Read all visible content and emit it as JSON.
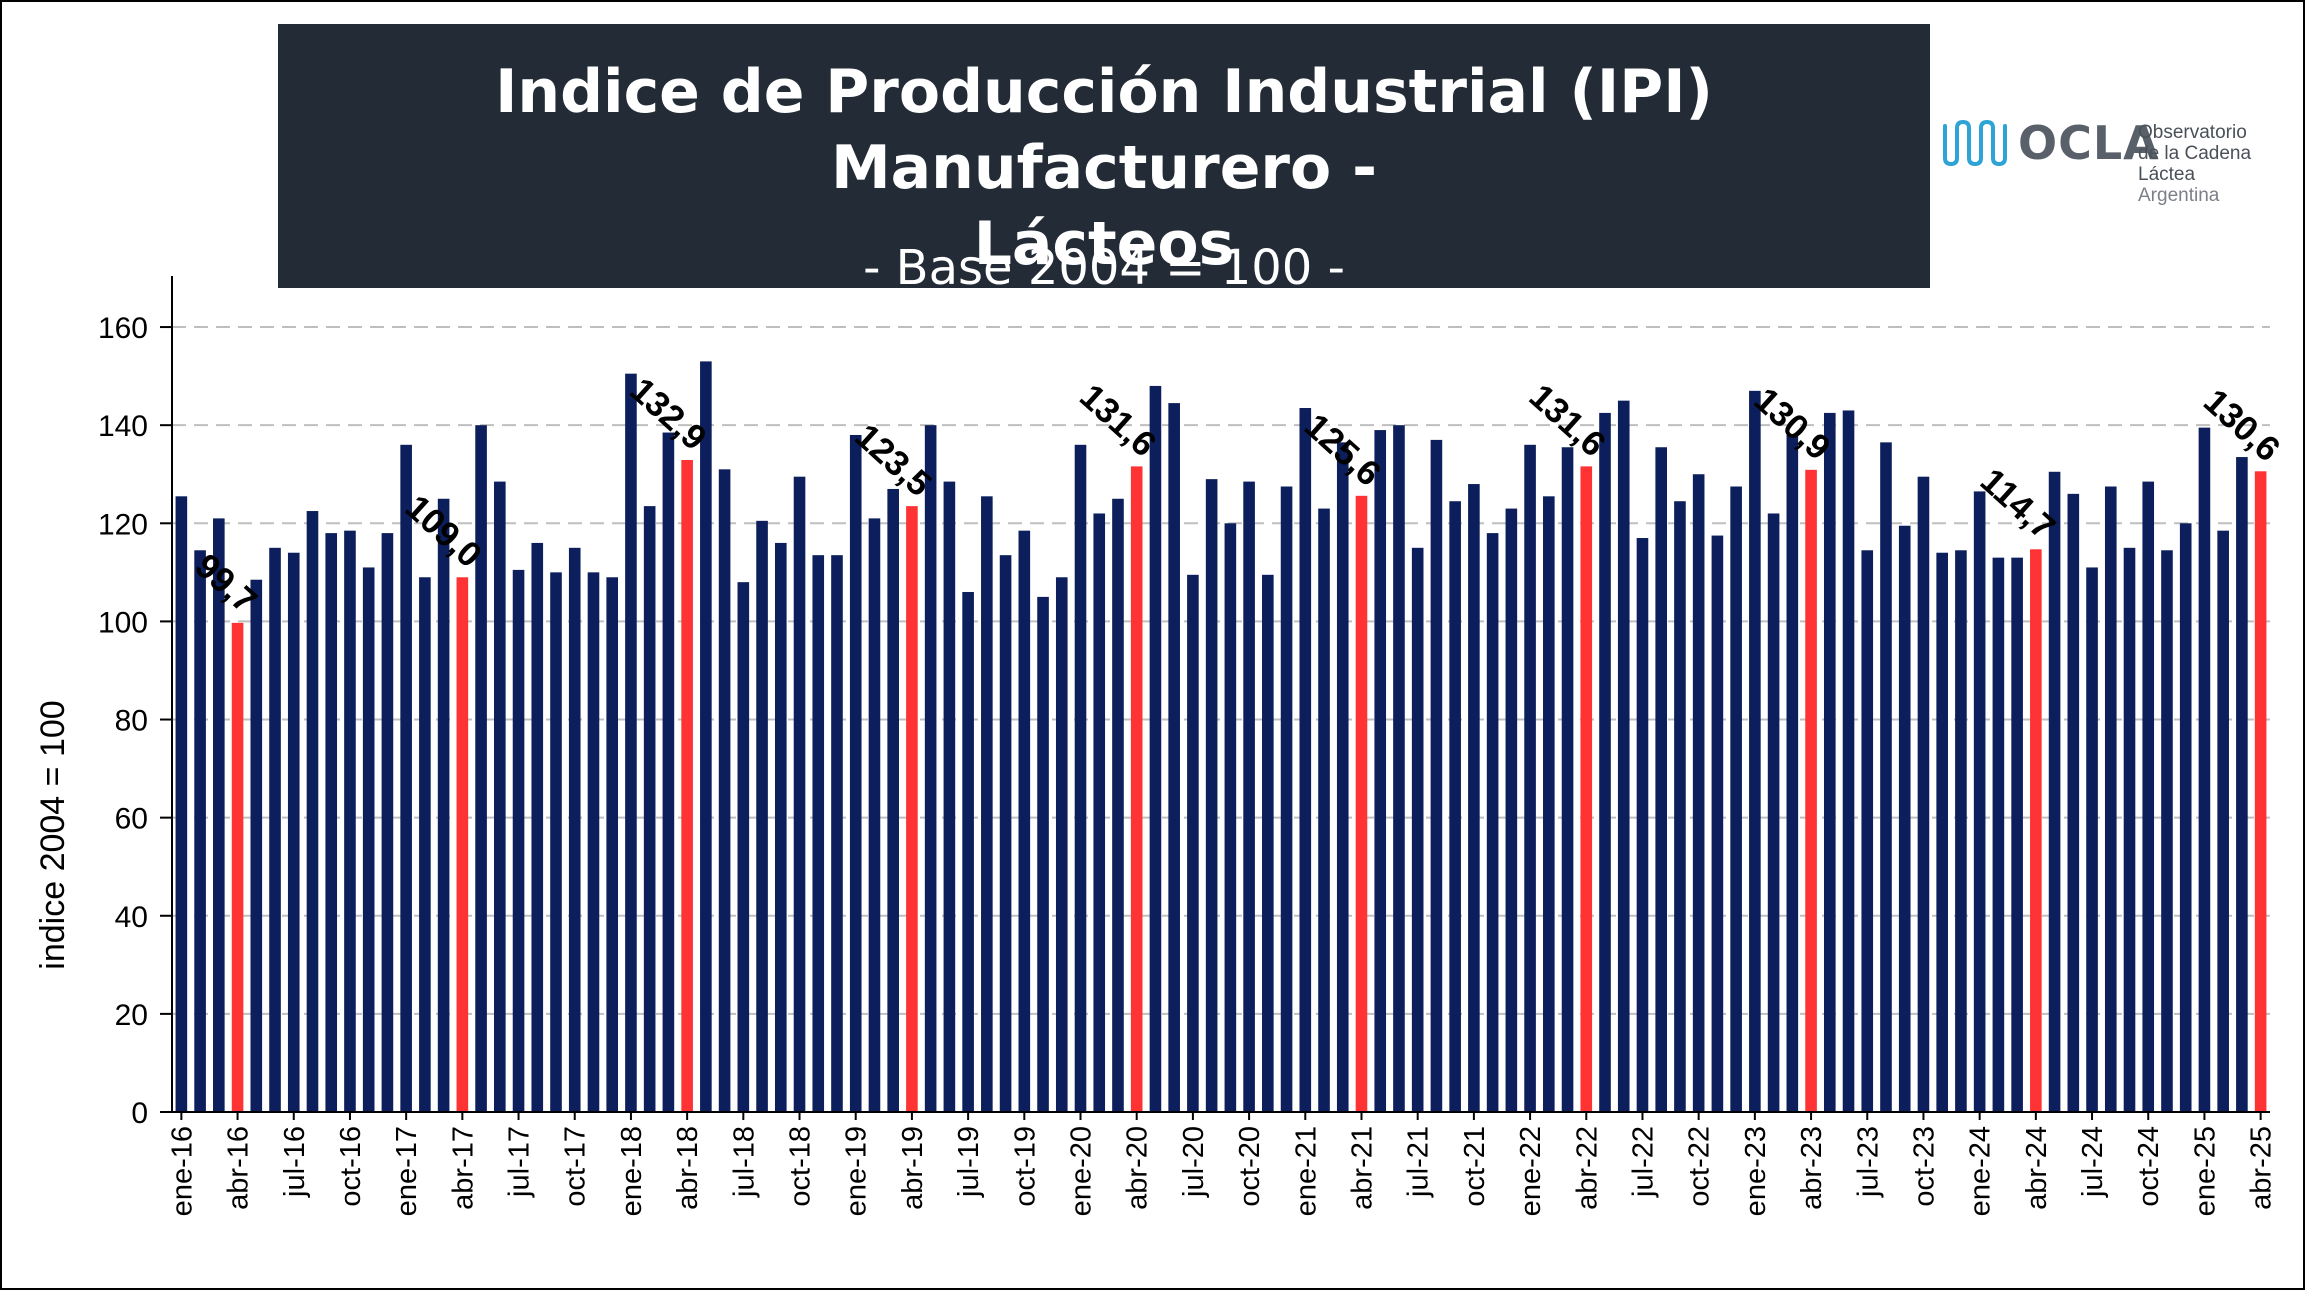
{
  "title": "Indice de Producción Industrial (IPI) Manufacturero - Lácteos",
  "title_lines": [
    "Indice de Producción Industrial (IPI) Manufacturero -",
    "Lácteos"
  ],
  "subtitle": "- Base 2004 = 100 -",
  "logo": {
    "name": "OCLA",
    "line1": "Observatorio",
    "line2": "de la Cadena Láctea",
    "line3": "Argentina",
    "icon": "wave-mark-icon"
  },
  "colors": {
    "title_background": "#222b36",
    "bar_default": "#0c1f5c",
    "bar_highlight": "#ff3333",
    "grid": "#bfbfbf",
    "logo_accent": "#2ea3d6"
  },
  "chart_data": {
    "type": "bar",
    "ylabel": "indice 2004 = 100",
    "xlabel": "",
    "ylim": [
      0,
      170
    ],
    "yticks": [
      0,
      20,
      40,
      60,
      80,
      100,
      120,
      140,
      160
    ],
    "grid": "horizontal dashed",
    "legend": "none",
    "categories": [
      "ene-16",
      "feb-16",
      "mar-16",
      "abr-16",
      "may-16",
      "jun-16",
      "jul-16",
      "ago-16",
      "sep-16",
      "oct-16",
      "nov-16",
      "dic-16",
      "ene-17",
      "feb-17",
      "mar-17",
      "abr-17",
      "may-17",
      "jun-17",
      "jul-17",
      "ago-17",
      "sep-17",
      "oct-17",
      "nov-17",
      "dic-17",
      "ene-18",
      "feb-18",
      "mar-18",
      "abr-18",
      "may-18",
      "jun-18",
      "jul-18",
      "ago-18",
      "sep-18",
      "oct-18",
      "nov-18",
      "dic-18",
      "ene-19",
      "feb-19",
      "mar-19",
      "abr-19",
      "may-19",
      "jun-19",
      "jul-19",
      "ago-19",
      "sep-19",
      "oct-19",
      "nov-19",
      "dic-19",
      "ene-20",
      "feb-20",
      "mar-20",
      "abr-20",
      "may-20",
      "jun-20",
      "jul-20",
      "ago-20",
      "sep-20",
      "oct-20",
      "nov-20",
      "dic-20",
      "ene-21",
      "feb-21",
      "mar-21",
      "abr-21",
      "may-21",
      "jun-21",
      "jul-21",
      "ago-21",
      "sep-21",
      "oct-21",
      "nov-21",
      "dic-21",
      "ene-22",
      "feb-22",
      "mar-22",
      "abr-22",
      "may-22",
      "jun-22",
      "jul-22",
      "ago-22",
      "sep-22",
      "oct-22",
      "nov-22",
      "dic-22",
      "ene-23",
      "feb-23",
      "mar-23",
      "abr-23",
      "may-23",
      "jun-23",
      "jul-23",
      "ago-23",
      "sep-23",
      "oct-23",
      "nov-23",
      "dic-23",
      "ene-24",
      "feb-24",
      "mar-24",
      "abr-24",
      "may-24",
      "jun-24",
      "jul-24",
      "ago-24",
      "sep-24",
      "oct-24",
      "nov-24",
      "dic-24",
      "ene-25",
      "feb-25",
      "mar-25",
      "abr-25"
    ],
    "tick_labels": [
      "ene-16",
      "abr-16",
      "jul-16",
      "oct-16",
      "ene-17",
      "abr-17",
      "jul-17",
      "oct-17",
      "ene-18",
      "abr-18",
      "jul-18",
      "oct-18",
      "ene-19",
      "abr-19",
      "jul-19",
      "oct-19",
      "ene-20",
      "abr-20",
      "jul-20",
      "oct-20",
      "ene-21",
      "abr-21",
      "jul-21",
      "oct-21",
      "ene-22",
      "abr-22",
      "jul-22",
      "oct-22",
      "ene-23",
      "abr-23",
      "jul-23",
      "oct-23",
      "ene-24",
      "abr-24",
      "jul-24",
      "oct-24",
      "ene-25",
      "abr-25"
    ],
    "values": [
      125.5,
      114.5,
      121.0,
      99.7,
      108.5,
      115.0,
      114.0,
      122.5,
      118.0,
      118.5,
      111.0,
      118.0,
      136.0,
      109.0,
      125.0,
      109.0,
      140.0,
      128.5,
      110.5,
      116.0,
      110.0,
      115.0,
      110.0,
      109.0,
      150.5,
      123.5,
      138.5,
      132.9,
      153.0,
      131.0,
      108.0,
      120.5,
      116.0,
      129.5,
      113.5,
      113.5,
      138.0,
      121.0,
      127.0,
      123.5,
      140.0,
      128.5,
      106.0,
      125.5,
      113.5,
      118.5,
      105.0,
      109.0,
      136.0,
      122.0,
      125.0,
      131.6,
      148.0,
      144.5,
      109.5,
      129.0,
      120.0,
      128.5,
      109.5,
      127.5,
      143.5,
      123.0,
      136.5,
      125.6,
      139.0,
      140.0,
      115.0,
      137.0,
      124.5,
      128.0,
      118.0,
      123.0,
      136.0,
      125.5,
      135.5,
      131.6,
      142.5,
      145.0,
      117.0,
      135.5,
      124.5,
      130.0,
      117.5,
      127.5,
      147.0,
      122.0,
      138.0,
      130.9,
      142.5,
      143.0,
      114.5,
      136.5,
      119.5,
      129.5,
      114.0,
      114.5,
      126.5,
      113.0,
      113.0,
      114.7,
      130.5,
      126.0,
      111.0,
      127.5,
      115.0,
      128.5,
      114.5,
      120.0,
      139.5,
      118.5,
      133.5,
      130.6
    ],
    "highlight_indices": [
      3,
      15,
      27,
      39,
      51,
      63,
      75,
      87,
      99,
      111
    ],
    "highlight_series": "abr",
    "annotations": [
      {
        "index": 3,
        "text": "99,7"
      },
      {
        "index": 15,
        "text": "109,0"
      },
      {
        "index": 27,
        "text": "132,9"
      },
      {
        "index": 39,
        "text": "123,5"
      },
      {
        "index": 51,
        "text": "131,6"
      },
      {
        "index": 63,
        "text": "125,6"
      },
      {
        "index": 75,
        "text": "131,6"
      },
      {
        "index": 87,
        "text": "130,9"
      },
      {
        "index": 99,
        "text": "114,7"
      },
      {
        "index": 111,
        "text": "130,6"
      }
    ]
  }
}
